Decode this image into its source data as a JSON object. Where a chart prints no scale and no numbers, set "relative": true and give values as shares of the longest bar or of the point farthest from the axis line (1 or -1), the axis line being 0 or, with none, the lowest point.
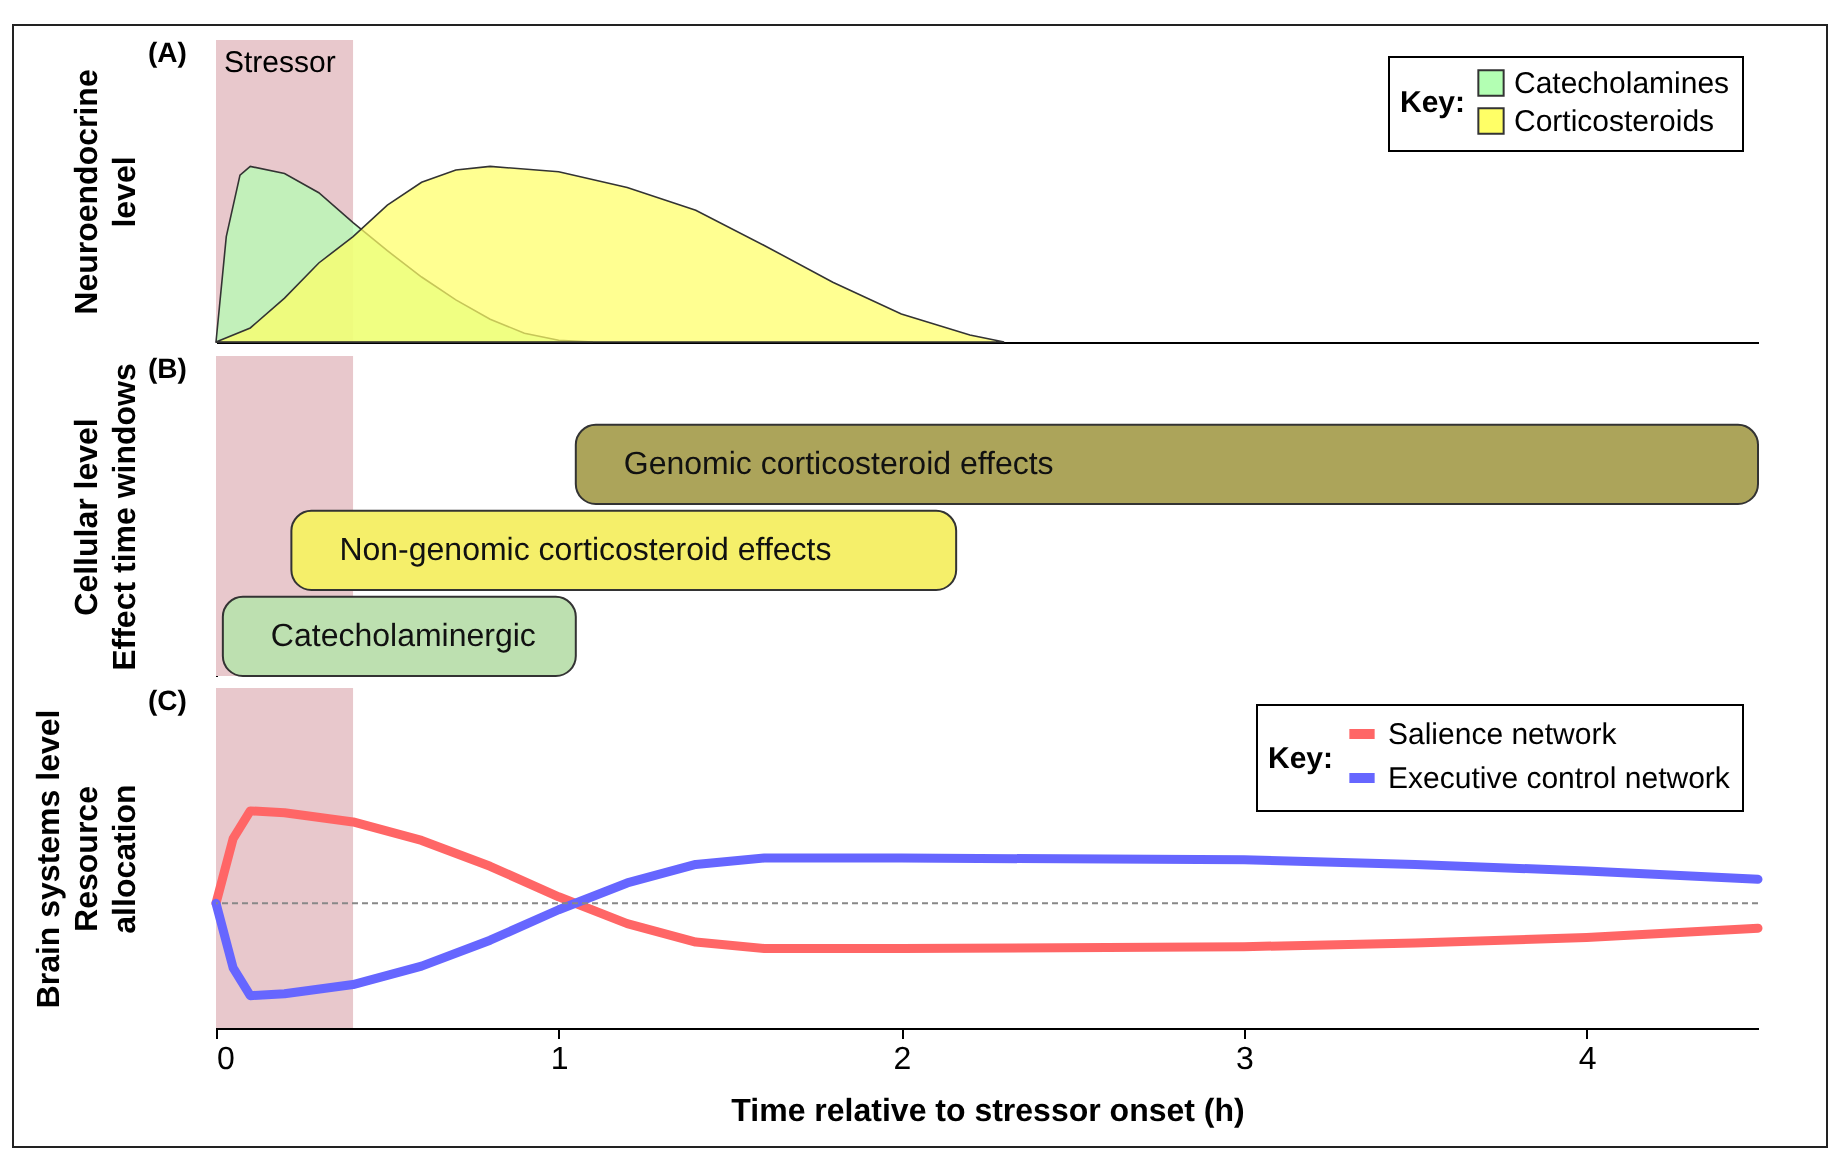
{
  "chart_data": [
    {
      "type": "area",
      "title": "(A)",
      "ylabel": "Neuroendocrine\nlevel",
      "relative": true,
      "xlim": [
        0,
        4.5
      ],
      "tick_labels": false,
      "legend": "top right",
      "legend_title": "Key:",
      "bands": [
        {
          "axis": "x",
          "from": 0,
          "to": 0.4,
          "label": "Stressor",
          "color": "#e8c8cc"
        }
      ],
      "series": [
        {
          "name": "Catecholamines",
          "color": "#b3ffb3",
          "x": [
            0,
            0.03,
            0.07,
            0.1,
            0.2,
            0.3,
            0.4,
            0.5,
            0.6,
            0.7,
            0.8,
            0.9,
            1.0,
            1.1
          ],
          "values": [
            0,
            0.6,
            0.95,
            1,
            0.96,
            0.85,
            0.68,
            0.52,
            0.37,
            0.24,
            0.13,
            0.05,
            0.01,
            0
          ]
        },
        {
          "name": "Corticosteroids",
          "color": "#ffff66",
          "x": [
            0,
            0.1,
            0.2,
            0.3,
            0.4,
            0.5,
            0.6,
            0.7,
            0.8,
            1.0,
            1.2,
            1.4,
            1.6,
            1.8,
            2.0,
            2.2,
            2.3
          ],
          "values": [
            0,
            0.08,
            0.25,
            0.45,
            0.6,
            0.78,
            0.91,
            0.98,
            1,
            0.97,
            0.88,
            0.75,
            0.55,
            0.34,
            0.16,
            0.04,
            0
          ]
        }
      ]
    },
    {
      "type": "bar",
      "title": "(B)",
      "ylabel": "Cellular level\nEffect time windows",
      "orientation": "horizontal",
      "xlim": [
        0,
        4.5
      ],
      "tick_labels": false,
      "bands": [
        {
          "axis": "x",
          "from": 0,
          "to": 0.4,
          "color": "#e8c8cc"
        }
      ],
      "categories": [
        "Genomic corticosteroid effects",
        "Non-genomic corticosteroid effects",
        "Catecholaminergic"
      ],
      "base": [
        1.05,
        0.22,
        0.02
      ],
      "values": [
        3.45,
        1.94,
        1.03
      ],
      "colors": [
        "#aca45a",
        "#f5ef6a",
        "#bde0b0"
      ]
    },
    {
      "type": "line",
      "title": "(C)",
      "ylabel": "Brain systems level\nResource\nallocation",
      "xlabel": "Time relative to stressor onset (h)",
      "relative": true,
      "xlim": [
        0,
        4.5
      ],
      "xticks": [
        0,
        1,
        2,
        3,
        4
      ],
      "tick_labels": "x",
      "legend": "top right",
      "legend_title": "Key:",
      "bands": [
        {
          "axis": "x",
          "from": 0,
          "to": 0.4,
          "color": "#e8c8cc"
        }
      ],
      "ref_lines": [
        {
          "axis": "y",
          "value": 0,
          "color": "#888888",
          "line_style": "dashed"
        }
      ],
      "series": [
        {
          "name": "Salience network",
          "color": "#ff6666",
          "x": [
            0,
            0.05,
            0.1,
            0.2,
            0.4,
            0.6,
            0.8,
            1.0,
            1.2,
            1.4,
            1.6,
            2.0,
            3.0,
            3.5,
            4.0,
            4.5
          ],
          "values": [
            0,
            0.7,
            1,
            0.98,
            0.88,
            0.68,
            0.4,
            0.07,
            -0.22,
            -0.42,
            -0.49,
            -0.49,
            -0.47,
            -0.43,
            -0.37,
            -0.27
          ]
        },
        {
          "name": "Executive control network",
          "color": "#6666ff",
          "x": [
            0,
            0.05,
            0.1,
            0.2,
            0.4,
            0.6,
            0.8,
            1.0,
            1.2,
            1.4,
            1.6,
            2.0,
            3.0,
            3.5,
            4.0,
            4.5
          ],
          "values": [
            0,
            -0.7,
            -1,
            -0.98,
            -0.88,
            -0.68,
            -0.4,
            -0.07,
            0.22,
            0.42,
            0.49,
            0.49,
            0.47,
            0.42,
            0.35,
            0.26
          ]
        }
      ]
    }
  ]
}
